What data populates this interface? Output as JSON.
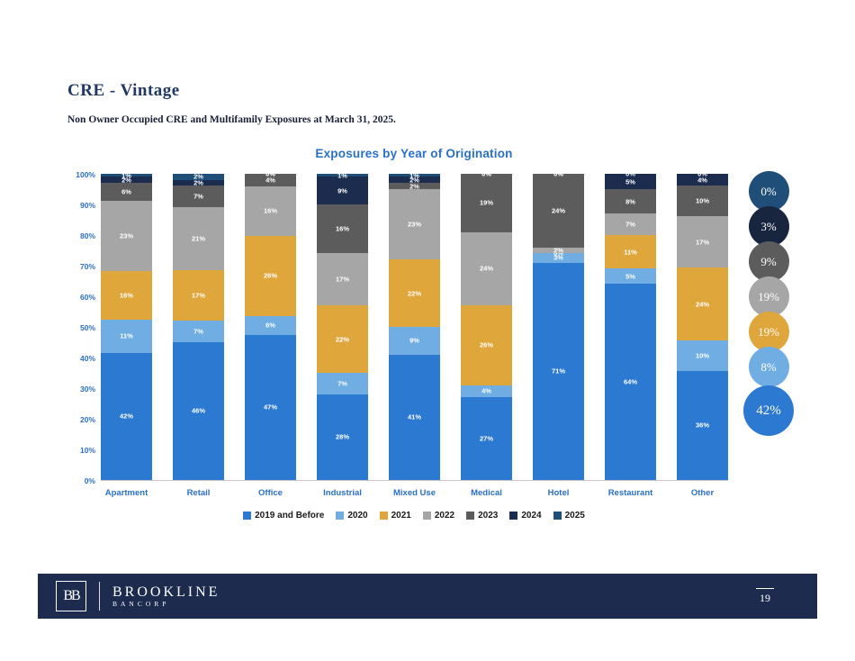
{
  "page": {
    "title": "CRE - Vintage",
    "subtitle": "Non Owner Occupied CRE and Multifamily Exposures at March 31, 2025.",
    "page_number": "19"
  },
  "footer": {
    "logo_monogram": "BB",
    "brand_name": "BROOKLINE",
    "brand_sub": "BANCORP"
  },
  "chart_data": {
    "type": "bar",
    "stacked": true,
    "stacked_100_percent": true,
    "title": "Exposures by Year of Origination",
    "legend_position": "bottom",
    "grid": false,
    "categories": [
      "Apartment",
      "Retail",
      "Office",
      "Industrial",
      "Mixed Use",
      "Medical",
      "Hotel",
      "Restaurant",
      "Other"
    ],
    "series": [
      {
        "name": "2019 and Before",
        "color": "#2B79D0",
        "values": [
          42,
          46,
          47,
          28,
          41,
          27,
          71,
          64,
          36
        ]
      },
      {
        "name": "2020",
        "color": "#70ADE3",
        "values": [
          11,
          7,
          6,
          7,
          9,
          4,
          3,
          5,
          10
        ]
      },
      {
        "name": "2021",
        "color": "#DFA63C",
        "values": [
          16,
          17,
          26,
          22,
          22,
          26,
          0,
          11,
          24
        ]
      },
      {
        "name": "2022",
        "color": "#A6A6A6",
        "values": [
          23,
          21,
          16,
          17,
          23,
          24,
          2,
          7,
          17
        ]
      },
      {
        "name": "2023",
        "color": "#5C5C5C",
        "values": [
          6,
          7,
          4,
          16,
          2,
          19,
          24,
          8,
          10
        ]
      },
      {
        "name": "2024",
        "color": "#1C2C4E",
        "values": [
          2,
          2,
          0,
          9,
          2,
          0,
          0,
          5,
          4
        ]
      },
      {
        "name": "2025",
        "color": "#1F4E79",
        "values": [
          1,
          2,
          0,
          1,
          1,
          0,
          0,
          0,
          0
        ]
      }
    ],
    "y_axis": {
      "min": 0,
      "max": 100,
      "step": 10,
      "tick_labels": [
        "0%",
        "10%",
        "20%",
        "30%",
        "40%",
        "50%",
        "60%",
        "70%",
        "80%",
        "90%",
        "100%"
      ]
    },
    "totals_bubbles": [
      {
        "series": "2025",
        "label": "0%",
        "color": "#1F4E79"
      },
      {
        "series": "2024",
        "label": "3%",
        "color": "#18253F"
      },
      {
        "series": "2023",
        "label": "9%",
        "color": "#5C5C5C"
      },
      {
        "series": "2022",
        "label": "19%",
        "color": "#A6A6A6"
      },
      {
        "series": "2021",
        "label": "19%",
        "color": "#DFA63C"
      },
      {
        "series": "2020",
        "label": "8%",
        "color": "#70ADE3"
      },
      {
        "series": "2019 and Before",
        "label": "42%",
        "color": "#2B79D0"
      }
    ]
  }
}
